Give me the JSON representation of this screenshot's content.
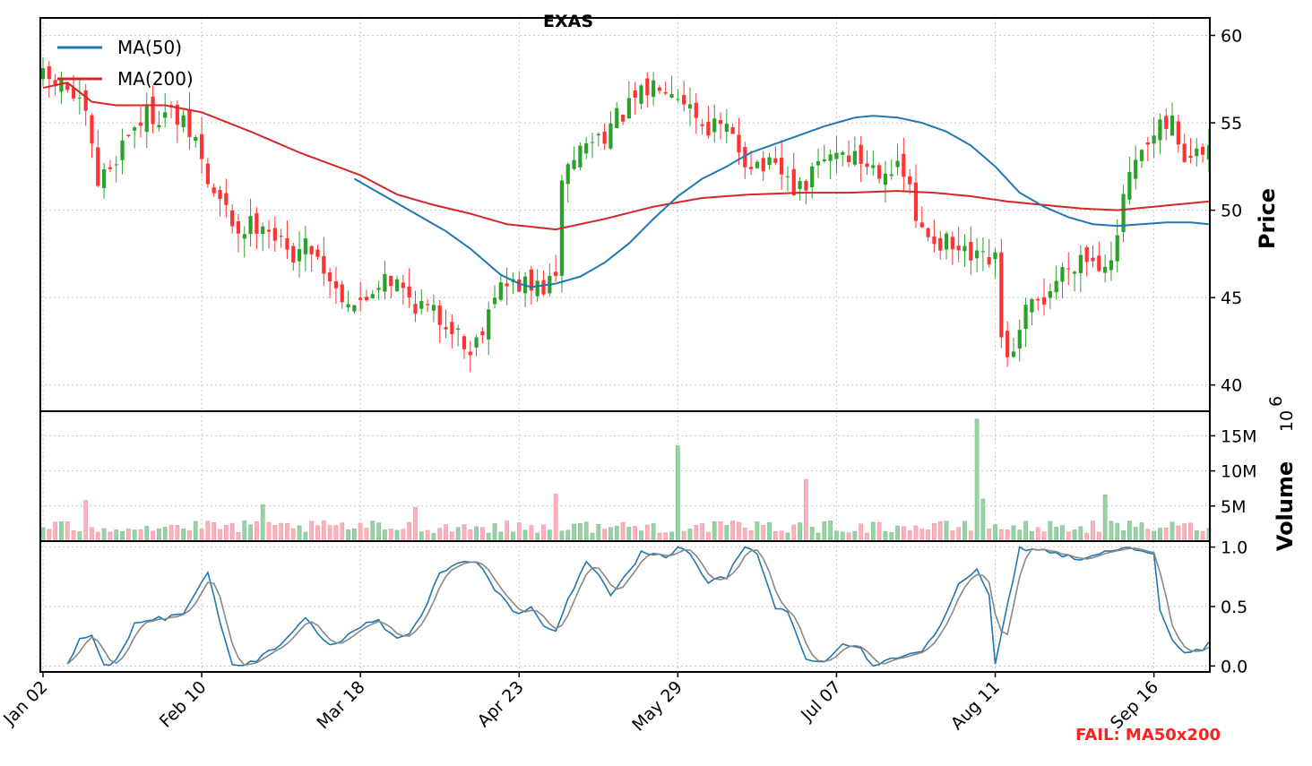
{
  "chart_data": {
    "type": "candlestick",
    "title": "EXAS",
    "ticker": "EXAS",
    "colors": {
      "up": "#2ca02c",
      "down": "#ff3333",
      "ma50": "#1f77b4",
      "ma200": "#d62728",
      "vol_up": "#96d2a4",
      "vol_down": "#ffb0bc",
      "stoch_k": "#1f77b4",
      "stoch_d": "#888888",
      "fail": "#ff2020"
    },
    "x_tick_labels": [
      "Jan 02",
      "Feb 10",
      "Mar 18",
      "Apr 23",
      "May 29",
      "Jul 07",
      "Aug 11",
      "Sep 16"
    ],
    "x_tick_index": [
      0,
      26,
      52,
      78,
      104,
      130,
      156,
      182
    ],
    "n_bars": 192,
    "price_panel": {
      "ylabel": "Price",
      "ylim": [
        38.5,
        61
      ],
      "yticks": [
        40,
        45,
        50,
        55,
        60
      ],
      "legend": [
        {
          "name": "MA(50)",
          "color": "#1f77b4"
        },
        {
          "name": "MA(200)",
          "color": "#d62728"
        }
      ],
      "legend_placement": "top-left",
      "grid": true,
      "close_anchors": [
        [
          0,
          57.5
        ],
        [
          4,
          57.0
        ],
        [
          7,
          55.2
        ],
        [
          9,
          51.5
        ],
        [
          11,
          52.5
        ],
        [
          14,
          54.5
        ],
        [
          17,
          55.5
        ],
        [
          21,
          55.5
        ],
        [
          25,
          54.0
        ],
        [
          27,
          51.5
        ],
        [
          32,
          48.8
        ],
        [
          36,
          49.5
        ],
        [
          40,
          47.5
        ],
        [
          44,
          48.0
        ],
        [
          48,
          45.5
        ],
        [
          52,
          44.5
        ],
        [
          56,
          46.5
        ],
        [
          60,
          45.0
        ],
        [
          64,
          44.0
        ],
        [
          67,
          43.5
        ],
        [
          70,
          41.8
        ],
        [
          72,
          43.5
        ],
        [
          74,
          45.5
        ],
        [
          78,
          45.8
        ],
        [
          80,
          45.5
        ],
        [
          84,
          45.8
        ],
        [
          85,
          52.0
        ],
        [
          88,
          53.5
        ],
        [
          92,
          54.5
        ],
        [
          95,
          55.5
        ],
        [
          98,
          56.5
        ],
        [
          101,
          57.5
        ],
        [
          103,
          57.2
        ],
        [
          105,
          56.5
        ],
        [
          108,
          55.0
        ],
        [
          112,
          54.5
        ],
        [
          115,
          53.0
        ],
        [
          118,
          52.5
        ],
        [
          121,
          52.0
        ],
        [
          124,
          51.0
        ],
        [
          127,
          52.5
        ],
        [
          130,
          53.5
        ],
        [
          133,
          53.0
        ],
        [
          136,
          52.5
        ],
        [
          139,
          52.5
        ],
        [
          142,
          51.5
        ],
        [
          143,
          49.0
        ],
        [
          146,
          48.5
        ],
        [
          150,
          47.5
        ],
        [
          153,
          47.0
        ],
        [
          156,
          47.0
        ],
        [
          157,
          42.5
        ],
        [
          159,
          41.5
        ],
        [
          161,
          44.0
        ],
        [
          164,
          45.0
        ],
        [
          167,
          46.5
        ],
        [
          170,
          47.5
        ],
        [
          173,
          47.0
        ],
        [
          176,
          48.0
        ],
        [
          177,
          51.0
        ],
        [
          180,
          53.0
        ],
        [
          183,
          54.5
        ],
        [
          185,
          55.0
        ],
        [
          187,
          53.0
        ],
        [
          189,
          53.0
        ],
        [
          191,
          53.5
        ]
      ],
      "ma50_anchors": [
        [
          51,
          51.8
        ],
        [
          56,
          50.8
        ],
        [
          61,
          49.8
        ],
        [
          66,
          48.8
        ],
        [
          70,
          47.8
        ],
        [
          75,
          46.3
        ],
        [
          78,
          45.8
        ],
        [
          80,
          45.6
        ],
        [
          84,
          45.8
        ],
        [
          88,
          46.2
        ],
        [
          92,
          47.0
        ],
        [
          96,
          48.1
        ],
        [
          100,
          49.5
        ],
        [
          104,
          50.8
        ],
        [
          108,
          51.8
        ],
        [
          112,
          52.5
        ],
        [
          116,
          53.3
        ],
        [
          120,
          53.8
        ],
        [
          124,
          54.3
        ],
        [
          128,
          54.8
        ],
        [
          133,
          55.3
        ],
        [
          136,
          55.4
        ],
        [
          140,
          55.3
        ],
        [
          144,
          55.0
        ],
        [
          148,
          54.5
        ],
        [
          152,
          53.7
        ],
        [
          156,
          52.5
        ],
        [
          160,
          51.0
        ],
        [
          164,
          50.2
        ],
        [
          168,
          49.6
        ],
        [
          172,
          49.2
        ],
        [
          176,
          49.1
        ],
        [
          180,
          49.2
        ],
        [
          184,
          49.3
        ],
        [
          188,
          49.3
        ],
        [
          191,
          49.2
        ]
      ],
      "ma200_anchors": [
        [
          0,
          57.0
        ],
        [
          4,
          57.3
        ],
        [
          8,
          56.2
        ],
        [
          12,
          56.0
        ],
        [
          20,
          56.0
        ],
        [
          26,
          55.6
        ],
        [
          34,
          54.5
        ],
        [
          42,
          53.3
        ],
        [
          52,
          52.0
        ],
        [
          58,
          50.9
        ],
        [
          64,
          50.3
        ],
        [
          70,
          49.8
        ],
        [
          76,
          49.2
        ],
        [
          84,
          48.9
        ],
        [
          92,
          49.5
        ],
        [
          100,
          50.2
        ],
        [
          108,
          50.7
        ],
        [
          116,
          50.9
        ],
        [
          124,
          51.0
        ],
        [
          132,
          51.0
        ],
        [
          140,
          51.1
        ],
        [
          146,
          51.0
        ],
        [
          152,
          50.8
        ],
        [
          158,
          50.5
        ],
        [
          164,
          50.3
        ],
        [
          170,
          50.1
        ],
        [
          176,
          50.0
        ],
        [
          182,
          50.2
        ],
        [
          188,
          50.4
        ],
        [
          191,
          50.5
        ]
      ]
    },
    "volume_panel": {
      "ylabel": "Volume",
      "multiplier_label": "10",
      "multiplier_exp": "6",
      "ylim": [
        0,
        18.5
      ],
      "yticks": [
        5,
        10,
        15
      ],
      "ytick_labels": [
        "5M",
        "10M",
        "15M"
      ],
      "base_mean": 2.0,
      "spikes": [
        [
          7,
          5.8
        ],
        [
          36,
          5.2
        ],
        [
          61,
          4.8
        ],
        [
          84,
          6.7
        ],
        [
          104,
          13.6
        ],
        [
          125,
          8.8
        ],
        [
          153,
          17.4
        ],
        [
          154,
          6.0
        ],
        [
          174,
          6.6
        ]
      ]
    },
    "stoch_panel": {
      "ylim": [
        -0.05,
        1.05
      ],
      "yticks": [
        0.0,
        0.5,
        1.0
      ],
      "ytick_labels": [
        "0.0",
        "0.5",
        "1.0"
      ],
      "k_anchors": [
        [
          4,
          0.0
        ],
        [
          6,
          0.25
        ],
        [
          8,
          0.25
        ],
        [
          10,
          0.0
        ],
        [
          12,
          0.05
        ],
        [
          15,
          0.35
        ],
        [
          17,
          0.4
        ],
        [
          20,
          0.4
        ],
        [
          23,
          0.45
        ],
        [
          25,
          0.62
        ],
        [
          27,
          0.78
        ],
        [
          29,
          0.38
        ],
        [
          31,
          0.0
        ],
        [
          33,
          0.02
        ],
        [
          35,
          0.05
        ],
        [
          38,
          0.15
        ],
        [
          41,
          0.3
        ],
        [
          43,
          0.42
        ],
        [
          46,
          0.2
        ],
        [
          48,
          0.18
        ],
        [
          51,
          0.3
        ],
        [
          53,
          0.38
        ],
        [
          55,
          0.38
        ],
        [
          58,
          0.22
        ],
        [
          60,
          0.25
        ],
        [
          62,
          0.42
        ],
        [
          65,
          0.78
        ],
        [
          68,
          0.85
        ],
        [
          71,
          0.88
        ],
        [
          74,
          0.65
        ],
        [
          77,
          0.45
        ],
        [
          80,
          0.48
        ],
        [
          82,
          0.35
        ],
        [
          84,
          0.28
        ],
        [
          86,
          0.55
        ],
        [
          89,
          0.88
        ],
        [
          91,
          0.78
        ],
        [
          93,
          0.6
        ],
        [
          95,
          0.72
        ],
        [
          98,
          0.95
        ],
        [
          100,
          0.95
        ],
        [
          102,
          0.92
        ],
        [
          104,
          1.0
        ],
        [
          106,
          0.93
        ],
        [
          109,
          0.7
        ],
        [
          112,
          0.75
        ],
        [
          115,
          1.0
        ],
        [
          117,
          0.95
        ],
        [
          120,
          0.5
        ],
        [
          122,
          0.45
        ],
        [
          125,
          0.05
        ],
        [
          128,
          0.05
        ],
        [
          131,
          0.18
        ],
        [
          134,
          0.15
        ],
        [
          136,
          0.0
        ],
        [
          139,
          0.05
        ],
        [
          141,
          0.1
        ],
        [
          144,
          0.12
        ],
        [
          147,
          0.35
        ],
        [
          150,
          0.7
        ],
        [
          153,
          0.8
        ],
        [
          155,
          0.6
        ],
        [
          157,
          0.75
        ],
        [
          159,
          0.65
        ],
        [
          162,
          0.55
        ],
        [
          164,
          0.38
        ],
        [
          167,
          0.05
        ],
        [
          170,
          0.15
        ],
        [
          172,
          0.12
        ],
        [
          175,
          0.05
        ],
        [
          177,
          0.05
        ],
        [
          180,
          0.28
        ],
        [
          182,
          0.25
        ],
        [
          184,
          0.0
        ],
        [
          186,
          0.2
        ],
        [
          189,
          0.75
        ],
        [
          191,
          0.97
        ]
      ],
      "k_anchors_after_aug": [
        [
          156,
          0.0
        ],
        [
          158,
          0.5
        ],
        [
          160,
          1.0
        ],
        [
          162,
          0.97
        ],
        [
          165,
          0.97
        ],
        [
          168,
          0.92
        ],
        [
          171,
          0.9
        ],
        [
          174,
          0.97
        ],
        [
          177,
          0.98
        ],
        [
          180,
          0.98
        ],
        [
          183,
          0.95
        ],
        [
          186,
          0.75
        ],
        [
          188,
          0.45
        ],
        [
          190,
          0.22
        ],
        [
          191,
          0.18
        ]
      ],
      "k_anchors_tail": [
        [
          183,
          0.45
        ],
        [
          185,
          0.2
        ],
        [
          187,
          0.12
        ],
        [
          189,
          0.12
        ],
        [
          190,
          0.15
        ],
        [
          191,
          0.2
        ]
      ],
      "grid": true
    },
    "annotation": "FAIL: MA50x200"
  }
}
